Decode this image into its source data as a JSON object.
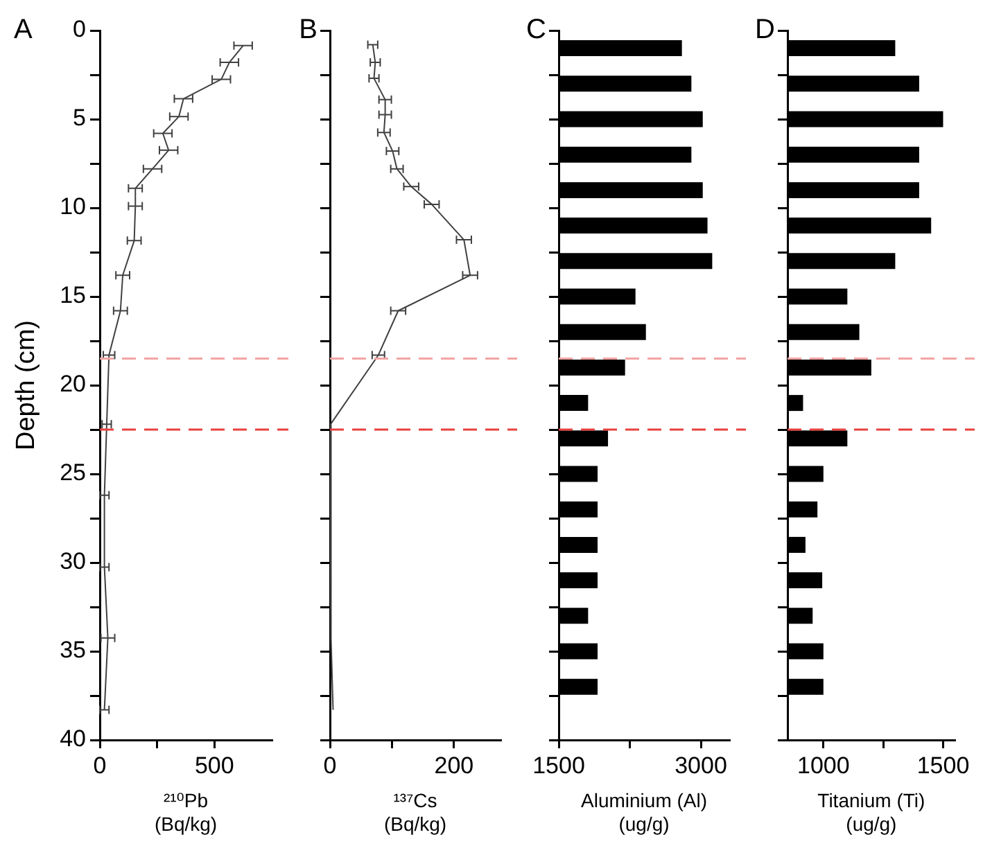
{
  "chart_data": [
    {
      "type": "line",
      "orientation": "horizontal",
      "title": "A",
      "ylabel": "Depth (cm)",
      "xlabel": "²¹⁰Pb (Bq/kg)",
      "grid": false,
      "series": [
        {
          "color": "#404040",
          "x": [
            0.85,
            1.8,
            2.75,
            3.85,
            4.85,
            5.8,
            6.75,
            7.8,
            8.9,
            9.9,
            11.85,
            13.8,
            15.8,
            18.3,
            22.2,
            26.2,
            30.25,
            34.25,
            38.3
          ],
          "values": [
            625,
            565,
            530,
            365,
            345,
            275,
            300,
            230,
            155,
            155,
            150,
            100,
            90,
            40,
            30,
            20,
            20,
            35,
            20
          ],
          "errors": [
            40,
            40,
            40,
            40,
            40,
            40,
            40,
            40,
            30,
            30,
            30,
            30,
            30,
            25,
            20,
            20,
            20,
            30,
            20
          ]
        }
      ],
      "xlim": [
        0,
        750
      ],
      "xticks": [
        0,
        {
          "value": 250,
          "label": null
        },
        500
      ],
      "ylim": [
        40,
        0
      ],
      "yticks": [
        0,
        {
          "value": 2.5,
          "label": null
        },
        5,
        {
          "value": 7.5,
          "label": null
        },
        10,
        {
          "value": 12.5,
          "label": null
        },
        15,
        {
          "value": 17.5,
          "label": null
        },
        20,
        {
          "value": 22.5,
          "label": null
        },
        25,
        {
          "value": 27.5,
          "label": null
        },
        30,
        {
          "value": 32.5,
          "label": null
        },
        35,
        {
          "value": 37.5,
          "label": null
        },
        40
      ],
      "ref_lines": [
        {
          "axis": "y",
          "value": 18.5,
          "color": "#f4a3a3",
          "line_style": "dashed"
        },
        {
          "axis": "y",
          "value": 22.5,
          "color": "#e8413f",
          "line_style": "dashed"
        }
      ]
    },
    {
      "type": "line",
      "orientation": "horizontal",
      "title": "B",
      "xlabel": "¹³⁷Cs (Bq/kg)",
      "grid": false,
      "tick_labels": "x",
      "series": [
        {
          "color": "#404040",
          "x": [
            0.8,
            1.8,
            2.7,
            3.9,
            4.75,
            5.75,
            6.8,
            7.8,
            8.8,
            9.8,
            11.8,
            13.8,
            15.8,
            18.3,
            22.25,
            26.2,
            30.2,
            34.3,
            38.3
          ],
          "values": [
            69,
            73,
            71,
            89,
            89,
            87,
            101,
            108,
            131,
            164,
            216,
            226,
            110,
            78,
            0,
            2,
            1,
            2,
            5
          ],
          "errors": [
            8,
            8,
            8,
            10,
            10,
            10,
            10,
            10,
            12,
            12,
            12,
            12,
            12,
            10,
            null,
            null,
            null,
            null,
            null
          ]
        }
      ],
      "xlim": [
        0,
        275
      ],
      "xticks": [
        0,
        {
          "value": 100,
          "label": null
        },
        200
      ],
      "ylim": [
        40,
        0
      ],
      "yticks": [
        0,
        {
          "value": 2.5,
          "label": null
        },
        5,
        {
          "value": 7.5,
          "label": null
        },
        10,
        {
          "value": 12.5,
          "label": null
        },
        15,
        {
          "value": 17.5,
          "label": null
        },
        20,
        {
          "value": 22.5,
          "label": null
        },
        25,
        {
          "value": 27.5,
          "label": null
        },
        30,
        {
          "value": 32.5,
          "label": null
        },
        35,
        {
          "value": 37.5,
          "label": null
        },
        40
      ],
      "ref_lines": [
        {
          "axis": "y",
          "value": 18.5,
          "color": "#f4a3a3",
          "line_style": "dashed"
        },
        {
          "axis": "y",
          "value": 22.5,
          "color": "#e8413f",
          "line_style": "dashed"
        }
      ]
    },
    {
      "type": "bar",
      "orientation": "horizontal",
      "title": "C",
      "xlabel": "Aluminium (Al) (ug/g)",
      "grid": false,
      "tick_labels": "x",
      "series": [
        {
          "color": "#000000",
          "x": [
            1,
            3,
            5,
            7,
            9,
            11,
            13,
            15,
            17,
            19,
            21,
            23,
            25,
            27,
            29,
            31,
            33,
            35,
            37
          ],
          "values": [
            2800,
            2900,
            3020,
            2900,
            3020,
            3070,
            3120,
            2310,
            2420,
            2200,
            1810,
            2020,
            1910,
            1910,
            1910,
            1910,
            1810,
            1910,
            1910
          ]
        }
      ],
      "xlim": [
        1500,
        3300
      ],
      "xticks": [
        1500,
        {
          "value": 2250,
          "label": null
        },
        3000
      ],
      "ylim": [
        40,
        0
      ],
      "yticks": [
        0,
        {
          "value": 2.5,
          "label": null
        },
        5,
        {
          "value": 7.5,
          "label": null
        },
        10,
        {
          "value": 12.5,
          "label": null
        },
        15,
        {
          "value": 17.5,
          "label": null
        },
        20,
        {
          "value": 22.5,
          "label": null
        },
        25,
        {
          "value": 27.5,
          "label": null
        },
        30,
        {
          "value": 32.5,
          "label": null
        },
        35,
        {
          "value": 37.5,
          "label": null
        },
        40
      ],
      "ref_lines": [
        {
          "axis": "y",
          "value": 18.5,
          "color": "#f4a3a3",
          "line_style": "dashed"
        },
        {
          "axis": "y",
          "value": 22.5,
          "color": "#e8413f",
          "line_style": "dashed"
        }
      ]
    },
    {
      "type": "bar",
      "orientation": "horizontal",
      "title": "D",
      "xlabel": "Titanium (Ti) (ug/g)",
      "grid": false,
      "tick_labels": "x",
      "series": [
        {
          "color": "#000000",
          "x": [
            1,
            3,
            5,
            7,
            9,
            11,
            13,
            15,
            17,
            19,
            21,
            23,
            25,
            27,
            29,
            31,
            33,
            35,
            37
          ],
          "values": [
            1300,
            1400,
            1500,
            1400,
            1400,
            1450,
            1300,
            1100,
            1150,
            1200,
            915,
            1100,
            1000,
            975,
            925,
            995,
            955,
            1000,
            1000
          ]
        }
      ],
      "xlim": [
        850,
        1550
      ],
      "xticks": [
        1000,
        {
          "value": 1250,
          "label": null
        },
        1500
      ],
      "ylim": [
        40,
        0
      ],
      "yticks": [
        0,
        {
          "value": 2.5,
          "label": null
        },
        5,
        {
          "value": 7.5,
          "label": null
        },
        10,
        {
          "value": 12.5,
          "label": null
        },
        15,
        {
          "value": 17.5,
          "label": null
        },
        20,
        {
          "value": 22.5,
          "label": null
        },
        25,
        {
          "value": 27.5,
          "label": null
        },
        30,
        {
          "value": 32.5,
          "label": null
        },
        35,
        {
          "value": 37.5,
          "label": null
        },
        40
      ],
      "ref_lines": [
        {
          "axis": "y",
          "value": 18.5,
          "color": "#f4a3a3",
          "line_style": "dashed"
        },
        {
          "axis": "y",
          "value": 22.5,
          "color": "#e8413f",
          "line_style": "dashed"
        }
      ]
    }
  ]
}
